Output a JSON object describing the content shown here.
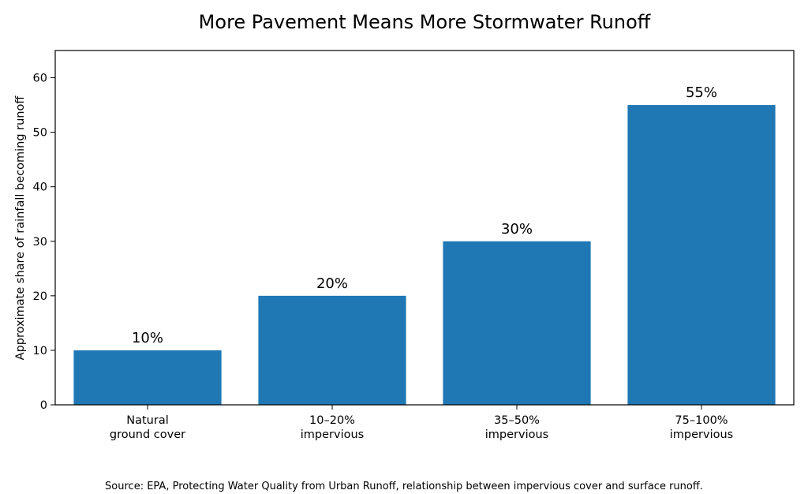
{
  "chart_data": {
    "type": "bar",
    "title": "More Pavement Means More Stormwater Runoff",
    "xlabel": "",
    "ylabel": "Approximate share of rainfall becoming runoff",
    "categories": [
      [
        "Natural",
        "ground cover"
      ],
      [
        "10–20%",
        "impervious"
      ],
      [
        "35–50%",
        "impervious"
      ],
      [
        "75–100%",
        "impervious"
      ]
    ],
    "values": [
      10,
      20,
      30,
      55
    ],
    "data_labels": [
      "10%",
      "20%",
      "30%",
      "55%"
    ],
    "ylim": [
      0,
      65
    ],
    "yticks": [
      0,
      10,
      20,
      30,
      40,
      50,
      60
    ],
    "grid": false,
    "legend": "none",
    "bar_color": "#1f77b4"
  },
  "footer": {
    "source": "Source: EPA, Protecting Water Quality from Urban Runoff, relationship between impervious cover and surface runoff."
  }
}
